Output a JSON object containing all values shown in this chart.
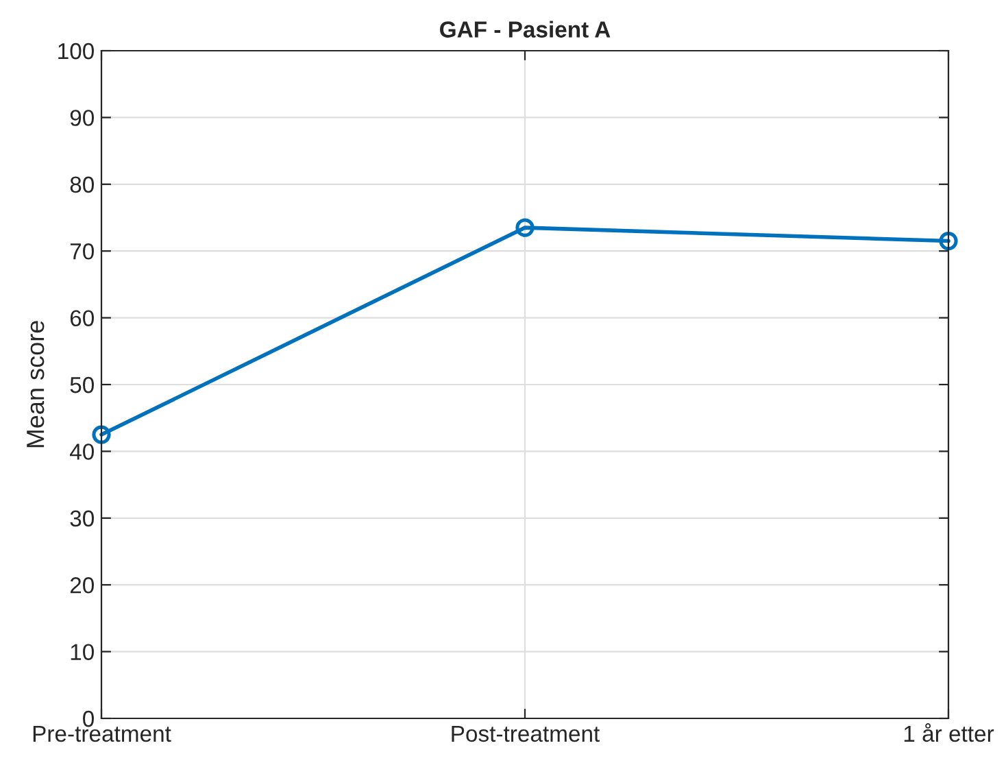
{
  "chart_data": {
    "type": "line",
    "title": "GAF - Pasient A",
    "ylabel": "Mean score",
    "categories": [
      "Pre-treatment",
      "Post-treatment",
      "1 år etter"
    ],
    "series": [
      {
        "color": "#0072bd",
        "values": [
          42.5,
          73.5,
          71.5
        ]
      }
    ],
    "ylim": [
      0,
      100
    ],
    "yticks": [
      0,
      10,
      20,
      30,
      40,
      50,
      60,
      70,
      80,
      90,
      100
    ],
    "grid": true,
    "marker": "circle",
    "line_style": "solid"
  }
}
